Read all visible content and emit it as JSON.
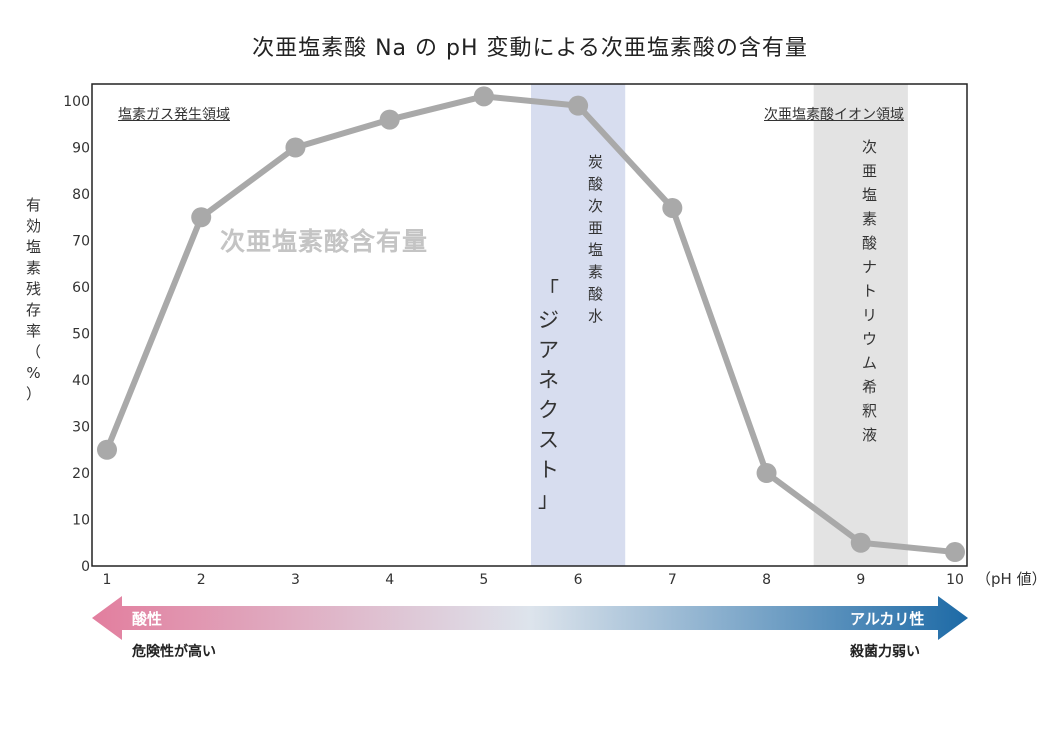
{
  "chart_data": {
    "type": "line",
    "title": "次亜塩素酸 Na の pH 変動による次亜塩素酸の含有量",
    "ylabel": "有効塩素残存率（%）",
    "xlabel": "（pH 値）",
    "x": [
      1,
      2,
      3,
      4,
      5,
      6,
      7,
      8,
      9,
      10
    ],
    "xlim": [
      1,
      10
    ],
    "ylim": [
      0,
      100
    ],
    "yticks": [
      0,
      10,
      20,
      30,
      40,
      50,
      60,
      70,
      80,
      90,
      100
    ],
    "series": [
      {
        "name": "次亜塩素酸含有量",
        "values": [
          25,
          75,
          90,
          96,
          101,
          99,
          77,
          20,
          5,
          3
        ]
      }
    ],
    "line_color": "#a9a9a9",
    "grid": false,
    "annotations": {
      "gas_region": "塩素ガス発生領域",
      "ion_region": "次亜塩素酸イオン領域"
    },
    "bands": [
      {
        "from": 5.5,
        "to": 6.5,
        "color": "#d7ddef",
        "label": "炭酸次亜塩素酸水",
        "sublabel": "「ジアネクスト」"
      },
      {
        "from": 8.5,
        "to": 9.5,
        "color": "#e3e3e3",
        "label": "次亜塩素酸ナトリウム希釈液"
      }
    ]
  },
  "arrow": {
    "left_label": "酸性",
    "right_label": "アルカリ性",
    "left_sub": "危険性が高い",
    "right_sub": "殺菌力弱い",
    "left_color": "#e27e9e",
    "mid_color": "#dde4ec",
    "right_color": "#1d6aa6"
  }
}
